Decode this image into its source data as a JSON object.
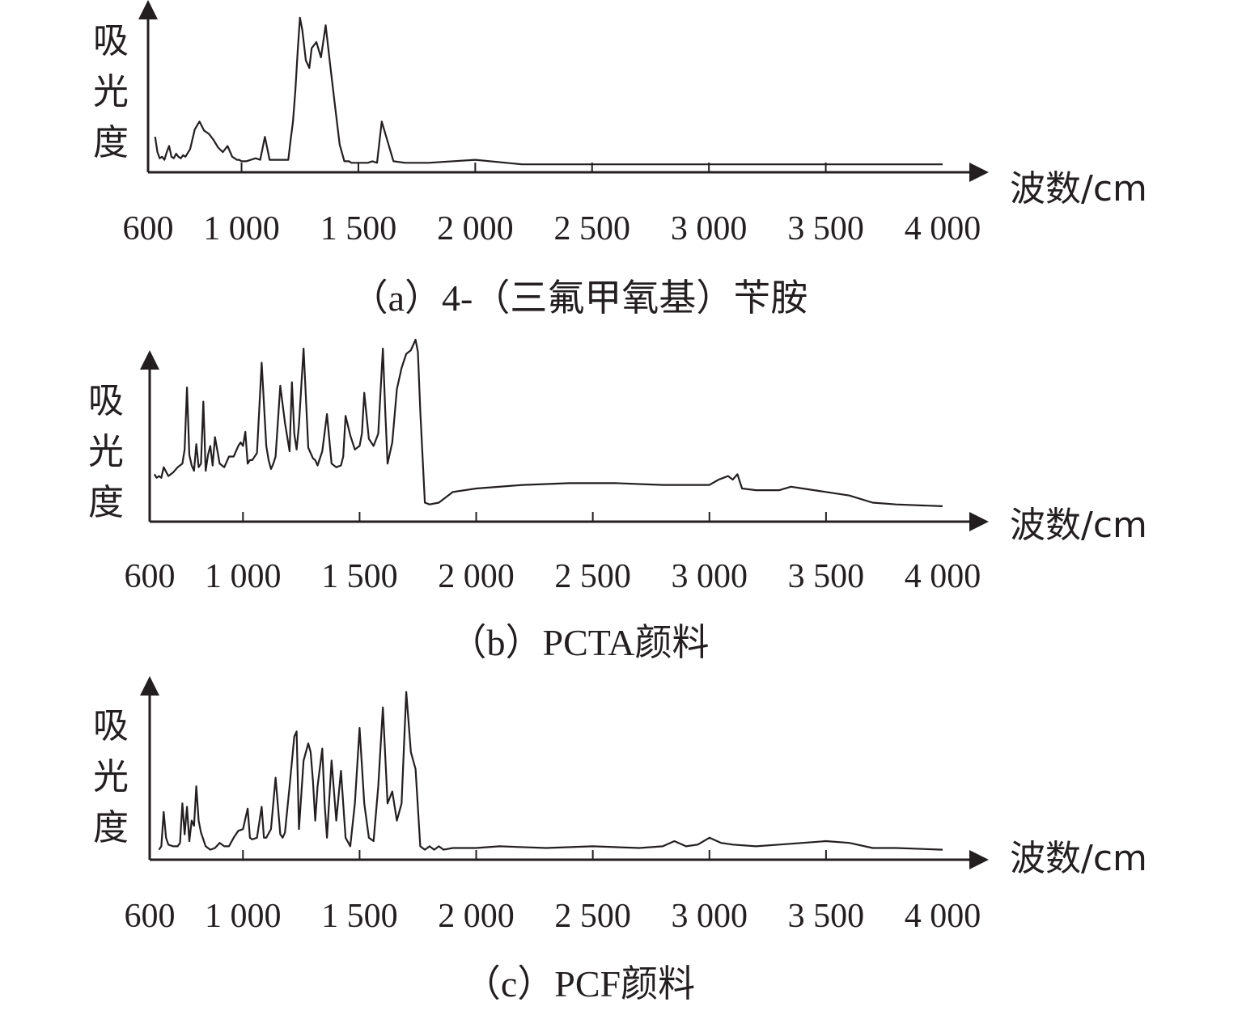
{
  "chart_data": [
    {
      "type": "line",
      "caption": "（a）4-（三氟甲氧基）苄胺",
      "ylabel": "吸光度",
      "xlabel": "波数/cm",
      "xlim": [
        600,
        4000
      ],
      "xticks": [
        "600",
        "1 000",
        "1 500",
        "2 000",
        "2 500",
        "3 000",
        "3 500",
        "4 000"
      ],
      "series": [
        {
          "x": [
            630,
            640,
            650,
            660,
            670,
            680,
            690,
            700,
            710,
            720,
            730,
            740,
            750,
            760,
            780,
            800,
            820,
            840,
            860,
            880,
            900,
            920,
            940,
            960,
            980,
            990,
            1000,
            1010,
            1020,
            1040,
            1060,
            1080,
            1100,
            1120,
            1140,
            1160,
            1175,
            1180,
            1190,
            1200,
            1210,
            1220,
            1230,
            1240,
            1250,
            1260,
            1275,
            1290,
            1300,
            1320,
            1340,
            1360,
            1380,
            1400,
            1420,
            1440,
            1460,
            1470,
            1480,
            1490,
            1500,
            1510,
            1520,
            1540,
            1560,
            1580,
            1600,
            1650,
            1700,
            1800,
            2000,
            2200,
            2500,
            2700,
            2900,
            2950,
            3000,
            3100,
            3300,
            3500,
            3700,
            3900,
            4000
          ],
          "y": [
            0.2,
            0.1,
            0.06,
            0.07,
            0.05,
            0.1,
            0.14,
            0.07,
            0.06,
            0.09,
            0.07,
            0.06,
            0.08,
            0.07,
            0.12,
            0.25,
            0.3,
            0.24,
            0.22,
            0.18,
            0.13,
            0.1,
            0.14,
            0.07,
            0.05,
            0.05,
            0.04,
            0.04,
            0.04,
            0.05,
            0.06,
            0.05,
            0.2,
            0.05,
            0.05,
            0.05,
            0.05,
            0.05,
            0.05,
            0.05,
            0.18,
            0.3,
            0.5,
            0.75,
            0.98,
            0.9,
            0.7,
            0.65,
            0.78,
            0.82,
            0.72,
            0.93,
            0.66,
            0.4,
            0.15,
            0.04,
            0.04,
            0.03,
            0.03,
            0.03,
            0.03,
            0.03,
            0.03,
            0.03,
            0.04,
            0.03,
            0.3,
            0.04,
            0.03,
            0.03,
            0.05,
            0.02,
            0.02,
            0.02,
            0.02,
            0.02,
            0.02,
            0.02,
            0.02,
            0.02,
            0.02,
            0.02,
            0.02
          ]
        }
      ]
    },
    {
      "type": "line",
      "caption": "（b）PCTA颜料",
      "ylabel": "吸光度",
      "xlabel": "波数/cm",
      "xlim": [
        600,
        4000
      ],
      "xticks": [
        "600",
        "1 000",
        "1 500",
        "2 000",
        "2 500",
        "3 000",
        "3 500",
        "4 000"
      ],
      "series": [
        {
          "x": [
            620,
            630,
            640,
            650,
            660,
            680,
            700,
            720,
            740,
            750,
            760,
            770,
            780,
            790,
            800,
            810,
            820,
            830,
            840,
            850,
            860,
            870,
            880,
            900,
            920,
            940,
            960,
            980,
            990,
            1000,
            1010,
            1020,
            1030,
            1040,
            1060,
            1080,
            1100,
            1110,
            1120,
            1130,
            1140,
            1160,
            1180,
            1200,
            1210,
            1220,
            1230,
            1240,
            1260,
            1280,
            1300,
            1310,
            1320,
            1340,
            1360,
            1380,
            1400,
            1420,
            1430,
            1440,
            1460,
            1480,
            1500,
            1510,
            1520,
            1540,
            1560,
            1580,
            1600,
            1610,
            1620,
            1640,
            1660,
            1680,
            1700,
            1720,
            1740,
            1750,
            1760,
            1780,
            1800,
            1840,
            1900,
            2000,
            2200,
            2400,
            2600,
            2800,
            2900,
            3000,
            3040,
            3060,
            3080,
            3100,
            3120,
            3140,
            3200,
            3300,
            3350,
            3400,
            3500,
            3600,
            3700,
            3800,
            4000
          ],
          "y": [
            0.24,
            0.22,
            0.23,
            0.22,
            0.28,
            0.23,
            0.25,
            0.28,
            0.3,
            0.38,
            0.73,
            0.35,
            0.29,
            0.26,
            0.41,
            0.28,
            0.3,
            0.65,
            0.26,
            0.35,
            0.4,
            0.29,
            0.45,
            0.3,
            0.28,
            0.34,
            0.34,
            0.4,
            0.42,
            0.4,
            0.48,
            0.3,
            0.32,
            0.32,
            0.36,
            0.87,
            0.4,
            0.32,
            0.27,
            0.3,
            0.34,
            0.74,
            0.53,
            0.37,
            0.76,
            0.47,
            0.38,
            0.52,
            0.95,
            0.39,
            0.33,
            0.32,
            0.29,
            0.37,
            0.58,
            0.3,
            0.28,
            0.29,
            0.34,
            0.57,
            0.46,
            0.38,
            0.4,
            0.47,
            0.7,
            0.44,
            0.4,
            0.47,
            0.95,
            0.6,
            0.3,
            0.42,
            0.72,
            0.84,
            0.92,
            0.94,
            1.0,
            0.93,
            0.6,
            0.08,
            0.07,
            0.08,
            0.14,
            0.16,
            0.18,
            0.19,
            0.19,
            0.18,
            0.18,
            0.18,
            0.21,
            0.22,
            0.23,
            0.21,
            0.24,
            0.16,
            0.15,
            0.15,
            0.17,
            0.16,
            0.14,
            0.12,
            0.08,
            0.07,
            0.06
          ]
        }
      ]
    },
    {
      "type": "line",
      "caption": "（c）PCF颜料",
      "ylabel": "吸光度",
      "xlabel": "波数/cm",
      "xlim": [
        600,
        4000
      ],
      "xticks": [
        "600",
        "1 000",
        "1 500",
        "2 000",
        "2 500",
        "3 000",
        "3 500",
        "4 000"
      ],
      "series": [
        {
          "x": [
            640,
            650,
            660,
            670,
            680,
            700,
            720,
            730,
            740,
            750,
            760,
            770,
            780,
            790,
            800,
            810,
            820,
            840,
            860,
            880,
            900,
            920,
            940,
            960,
            980,
            1000,
            1020,
            1030,
            1040,
            1060,
            1080,
            1090,
            1100,
            1120,
            1140,
            1160,
            1170,
            1180,
            1200,
            1220,
            1230,
            1240,
            1260,
            1280,
            1290,
            1300,
            1310,
            1320,
            1340,
            1350,
            1360,
            1380,
            1400,
            1420,
            1440,
            1460,
            1480,
            1500,
            1520,
            1540,
            1560,
            1580,
            1600,
            1620,
            1640,
            1660,
            1680,
            1700,
            1720,
            1740,
            1760,
            1780,
            1800,
            1820,
            1840,
            1860,
            1900,
            2000,
            2100,
            2300,
            2500,
            2700,
            2800,
            2850,
            2900,
            2950,
            3000,
            3050,
            3100,
            3200,
            3300,
            3400,
            3500,
            3600,
            3700,
            3800,
            4000
          ],
          "y": [
            0.03,
            0.05,
            0.25,
            0.1,
            0.06,
            0.05,
            0.05,
            0.07,
            0.3,
            0.12,
            0.28,
            0.08,
            0.2,
            0.17,
            0.4,
            0.2,
            0.13,
            0.05,
            0.03,
            0.04,
            0.07,
            0.05,
            0.05,
            0.1,
            0.14,
            0.15,
            0.27,
            0.1,
            0.09,
            0.1,
            0.28,
            0.1,
            0.1,
            0.15,
            0.45,
            0.12,
            0.1,
            0.13,
            0.4,
            0.69,
            0.72,
            0.15,
            0.55,
            0.65,
            0.6,
            0.43,
            0.2,
            0.4,
            0.62,
            0.3,
            0.1,
            0.55,
            0.2,
            0.49,
            0.1,
            0.05,
            0.3,
            0.74,
            0.3,
            0.1,
            0.08,
            0.4,
            0.86,
            0.3,
            0.37,
            0.2,
            0.3,
            0.95,
            0.6,
            0.5,
            0.05,
            0.03,
            0.05,
            0.03,
            0.05,
            0.03,
            0.04,
            0.04,
            0.05,
            0.04,
            0.05,
            0.04,
            0.05,
            0.08,
            0.05,
            0.06,
            0.1,
            0.07,
            0.06,
            0.05,
            0.06,
            0.07,
            0.08,
            0.07,
            0.04,
            0.04,
            0.03
          ]
        }
      ]
    }
  ]
}
